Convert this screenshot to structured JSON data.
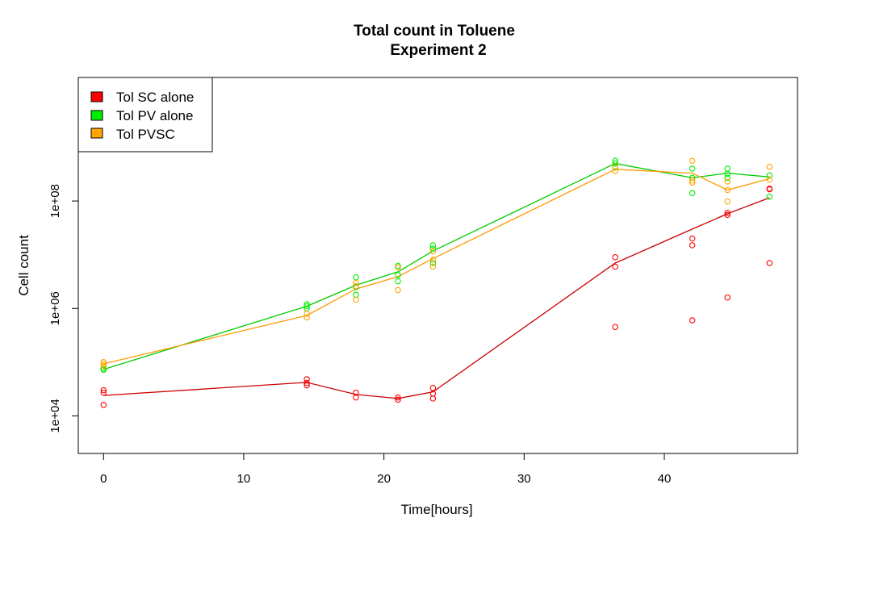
{
  "chart_data": {
    "type": "scatter",
    "title": "Total count in Toluene",
    "subtitle": "Experiment 2",
    "xlabel": "Time[hours]",
    "ylabel": "Cell count",
    "xlim": [
      -1.8,
      49.5
    ],
    "ylim_log10": [
      3.3,
      10.3
    ],
    "y_scale": "log",
    "x_ticks": [
      0,
      10,
      20,
      30,
      40
    ],
    "x_tick_labels": [
      "0",
      "10",
      "20",
      "30",
      "40"
    ],
    "y_ticks": [
      10000,
      1000000,
      100000000
    ],
    "y_tick_labels": [
      "1e+04",
      "1e+06",
      "1e+08"
    ],
    "legend_position": "top-left",
    "grid": false,
    "series": [
      {
        "name": "Tol SC alone",
        "color": "#ff0000",
        "line_color": "#cc0000",
        "points": [
          [
            0,
            30000
          ],
          [
            0,
            27000
          ],
          [
            0,
            16000
          ],
          [
            14.5,
            48000
          ],
          [
            14.5,
            41000
          ],
          [
            14.5,
            37000
          ],
          [
            18,
            27000
          ],
          [
            18,
            22000
          ],
          [
            21,
            22000
          ],
          [
            21,
            20000
          ],
          [
            23.5,
            33000
          ],
          [
            23.5,
            26000
          ],
          [
            23.5,
            21000
          ],
          [
            36.5,
            9000000
          ],
          [
            36.5,
            6000000
          ],
          [
            36.5,
            450000
          ],
          [
            42,
            15000000
          ],
          [
            42,
            20000000
          ],
          [
            42,
            600000
          ],
          [
            44.5,
            60000000
          ],
          [
            44.5,
            55000000
          ],
          [
            44.5,
            1600000
          ],
          [
            47.5,
            170000000
          ],
          [
            47.5,
            165000000
          ],
          [
            47.5,
            7000000
          ]
        ],
        "line": [
          [
            0,
            24000
          ],
          [
            14.5,
            42000
          ],
          [
            18,
            25000
          ],
          [
            21,
            21000
          ],
          [
            23.5,
            28000
          ],
          [
            36.5,
            7000000
          ],
          [
            42,
            30000000
          ],
          [
            44.5,
            58000000
          ],
          [
            47.5,
            115000000
          ]
        ]
      },
      {
        "name": "Tol PV alone",
        "color": "#00ee00",
        "line_color": "#00cc00",
        "points": [
          [
            0,
            76000
          ],
          [
            0,
            72000
          ],
          [
            14.5,
            1200000
          ],
          [
            14.5,
            1000000
          ],
          [
            14.5,
            1100000
          ],
          [
            18,
            3800000
          ],
          [
            18,
            2500000
          ],
          [
            18,
            1800000
          ],
          [
            21,
            6200000
          ],
          [
            21,
            4200000
          ],
          [
            21,
            3200000
          ],
          [
            23.5,
            15000000
          ],
          [
            23.5,
            13000000
          ],
          [
            23.5,
            7000000
          ],
          [
            36.5,
            560000000
          ],
          [
            36.5,
            500000000
          ],
          [
            36.5,
            420000000
          ],
          [
            42,
            400000000
          ],
          [
            42,
            270000000
          ],
          [
            42,
            140000000
          ],
          [
            44.5,
            400000000
          ],
          [
            44.5,
            320000000
          ],
          [
            44.5,
            270000000
          ],
          [
            47.5,
            300000000
          ],
          [
            47.5,
            120000000
          ]
        ],
        "line": [
          [
            0,
            73000
          ],
          [
            14.5,
            1100000
          ],
          [
            18,
            2700000
          ],
          [
            21,
            4800000
          ],
          [
            23.5,
            11700000
          ],
          [
            36.5,
            500000000
          ],
          [
            42,
            270000000
          ],
          [
            44.5,
            330000000
          ],
          [
            47.5,
            280000000
          ]
        ]
      },
      {
        "name": "Tol PVSC",
        "color": "#ffa500",
        "line_color": "#ff9900",
        "points": [
          [
            0,
            100000
          ],
          [
            0,
            92000
          ],
          [
            0,
            85000
          ],
          [
            14.5,
            800000
          ],
          [
            14.5,
            680000
          ],
          [
            18,
            3000000
          ],
          [
            18,
            2600000
          ],
          [
            18,
            1450000
          ],
          [
            21,
            5800000
          ],
          [
            21,
            2200000
          ],
          [
            23.5,
            11500000
          ],
          [
            23.5,
            8000000
          ],
          [
            23.5,
            6000000
          ],
          [
            36.5,
            430000000
          ],
          [
            36.5,
            360000000
          ],
          [
            42,
            560000000
          ],
          [
            42,
            220000000
          ],
          [
            42,
            240000000
          ],
          [
            44.5,
            230000000
          ],
          [
            44.5,
            98000000
          ],
          [
            44.5,
            160000000
          ],
          [
            47.5,
            430000000
          ],
          [
            47.5,
            250000000
          ]
        ],
        "line": [
          [
            0,
            93000
          ],
          [
            14.5,
            740000
          ],
          [
            18,
            2300000
          ],
          [
            21,
            3900000
          ],
          [
            23.5,
            8500000
          ],
          [
            36.5,
            390000000
          ],
          [
            42,
            330000000
          ],
          [
            44.5,
            160000000
          ],
          [
            47.5,
            260000000
          ]
        ]
      }
    ]
  }
}
